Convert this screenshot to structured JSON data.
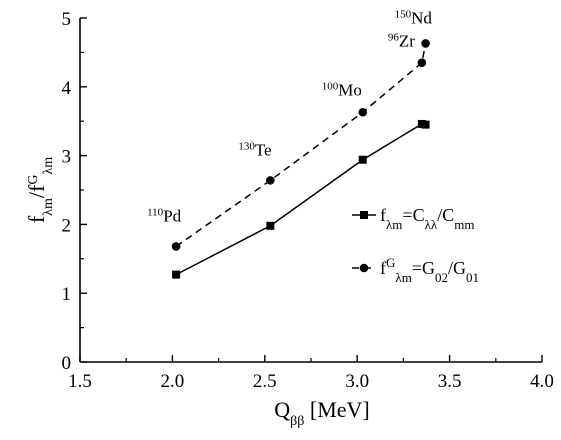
{
  "chart_data": {
    "type": "line",
    "xlabel": {
      "main": "Q",
      "sub": "ββ",
      "rest": " [MeV]"
    },
    "ylabel": {
      "f": "f",
      "sub1": "λm",
      "slash": "/f",
      "sup": "G",
      "sub2": "λm"
    },
    "xlim": [
      1.5,
      4.0
    ],
    "ylim": [
      0,
      5
    ],
    "xticks": [
      "1.5",
      "2.0",
      "2.5",
      "3.0",
      "3.5",
      "4.0"
    ],
    "yticks": [
      "0",
      "1",
      "2",
      "3",
      "4",
      "5"
    ],
    "grid": false,
    "legend_position": "right",
    "series": [
      {
        "key": "ratio",
        "marker": "square",
        "line": "solid",
        "legend": {
          "a": "f",
          "asub": "λm",
          "b": "=C",
          "bsub": "λλ",
          "c": "/C",
          "csub": "mm"
        },
        "x": [
          2.02,
          2.53,
          3.03,
          3.35,
          3.37
        ],
        "y": [
          1.27,
          1.98,
          2.94,
          3.46,
          3.45
        ]
      },
      {
        "key": "g",
        "marker": "circle",
        "line": "dashed",
        "legend": {
          "a": "f",
          "asup": "G",
          "asub": "λm",
          "b": "=G",
          "bsub": "02",
          "c": "/G",
          "csub": "01"
        },
        "x": [
          2.02,
          2.53,
          3.03,
          3.35,
          3.37
        ],
        "y": [
          1.68,
          2.64,
          3.63,
          4.35,
          4.63
        ]
      }
    ],
    "annotations": [
      {
        "sup": "110",
        "text": "Pd",
        "x": 2.02,
        "y": 1.68
      },
      {
        "sup": "130",
        "text": "Te",
        "x": 2.53,
        "y": 2.64
      },
      {
        "sup": "100",
        "text": "Mo",
        "x": 3.03,
        "y": 3.63
      },
      {
        "sup": "96",
        "text": "Zr",
        "x": 3.35,
        "y": 4.35
      },
      {
        "sup": "150",
        "text": "Nd",
        "x": 3.37,
        "y": 4.63
      }
    ]
  }
}
